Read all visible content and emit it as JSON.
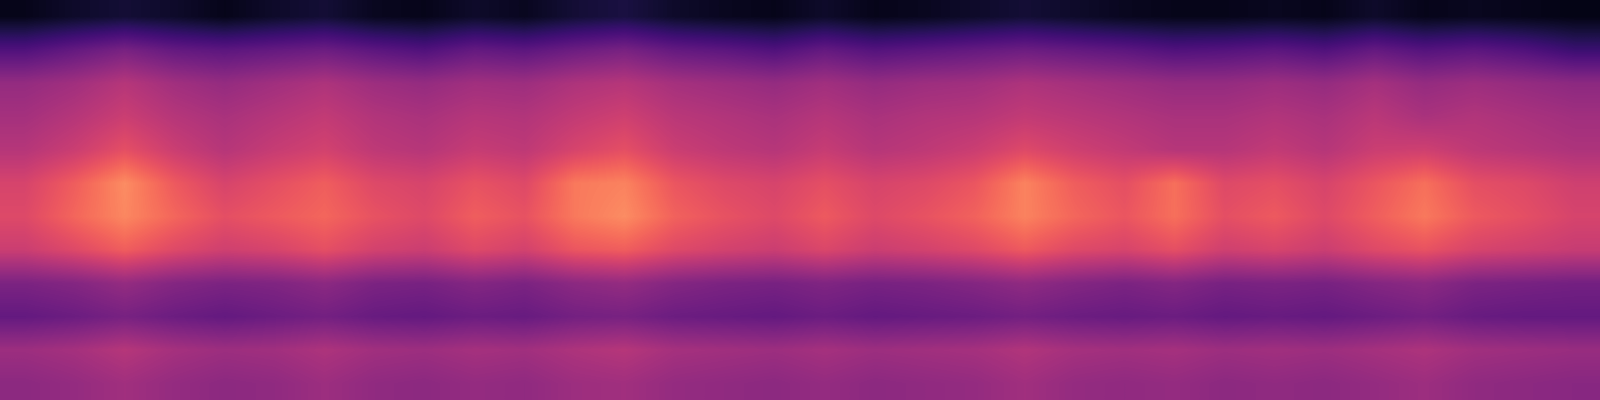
{
  "chart_data": {
    "type": "heatmap",
    "color": "magma",
    "tick_labels": false,
    "color_range": [
      0,
      1
    ],
    "cells": [
      [
        0.05,
        0.08,
        0.1,
        0.08,
        0.05,
        0.08,
        0.1,
        0.06,
        0.05,
        0.08,
        0.06,
        0.1,
        0.12,
        0.08,
        0.06,
        0.05,
        0.08,
        0.05,
        0.06,
        0.08,
        0.1,
        0.08,
        0.06,
        0.05,
        0.05,
        0.06,
        0.05,
        0.08,
        0.05,
        0.06,
        0.05,
        0.04
      ],
      [
        0.25,
        0.3,
        0.35,
        0.3,
        0.28,
        0.3,
        0.32,
        0.28,
        0.25,
        0.3,
        0.28,
        0.32,
        0.35,
        0.3,
        0.28,
        0.25,
        0.3,
        0.26,
        0.28,
        0.3,
        0.32,
        0.3,
        0.28,
        0.25,
        0.26,
        0.28,
        0.25,
        0.3,
        0.26,
        0.28,
        0.25,
        0.2
      ],
      [
        0.42,
        0.45,
        0.5,
        0.45,
        0.42,
        0.45,
        0.48,
        0.44,
        0.42,
        0.45,
        0.44,
        0.48,
        0.5,
        0.46,
        0.44,
        0.42,
        0.45,
        0.42,
        0.44,
        0.45,
        0.48,
        0.46,
        0.44,
        0.42,
        0.42,
        0.44,
        0.42,
        0.46,
        0.42,
        0.44,
        0.42,
        0.4
      ],
      [
        0.46,
        0.5,
        0.55,
        0.5,
        0.47,
        0.5,
        0.53,
        0.49,
        0.47,
        0.5,
        0.49,
        0.53,
        0.56,
        0.51,
        0.49,
        0.47,
        0.5,
        0.47,
        0.49,
        0.5,
        0.53,
        0.51,
        0.49,
        0.47,
        0.47,
        0.49,
        0.47,
        0.51,
        0.47,
        0.49,
        0.47,
        0.45
      ],
      [
        0.5,
        0.55,
        0.62,
        0.55,
        0.5,
        0.54,
        0.57,
        0.52,
        0.5,
        0.54,
        0.52,
        0.58,
        0.62,
        0.55,
        0.52,
        0.5,
        0.54,
        0.5,
        0.52,
        0.55,
        0.6,
        0.56,
        0.53,
        0.5,
        0.5,
        0.53,
        0.5,
        0.55,
        0.56,
        0.52,
        0.5,
        0.48
      ],
      [
        0.58,
        0.66,
        0.76,
        0.65,
        0.58,
        0.62,
        0.66,
        0.6,
        0.58,
        0.63,
        0.6,
        0.72,
        0.74,
        0.64,
        0.6,
        0.58,
        0.62,
        0.58,
        0.6,
        0.64,
        0.74,
        0.66,
        0.62,
        0.7,
        0.6,
        0.62,
        0.58,
        0.64,
        0.7,
        0.62,
        0.6,
        0.56
      ],
      [
        0.6,
        0.68,
        0.75,
        0.68,
        0.62,
        0.65,
        0.68,
        0.63,
        0.6,
        0.66,
        0.63,
        0.72,
        0.76,
        0.67,
        0.63,
        0.6,
        0.65,
        0.6,
        0.63,
        0.67,
        0.74,
        0.68,
        0.64,
        0.7,
        0.62,
        0.65,
        0.6,
        0.66,
        0.72,
        0.65,
        0.62,
        0.58
      ],
      [
        0.55,
        0.6,
        0.66,
        0.6,
        0.56,
        0.58,
        0.62,
        0.57,
        0.55,
        0.6,
        0.57,
        0.64,
        0.66,
        0.6,
        0.57,
        0.55,
        0.59,
        0.55,
        0.57,
        0.6,
        0.65,
        0.6,
        0.58,
        0.62,
        0.56,
        0.58,
        0.55,
        0.6,
        0.63,
        0.58,
        0.56,
        0.54
      ],
      [
        0.36,
        0.38,
        0.42,
        0.38,
        0.36,
        0.37,
        0.4,
        0.36,
        0.35,
        0.38,
        0.36,
        0.4,
        0.42,
        0.38,
        0.36,
        0.35,
        0.37,
        0.35,
        0.36,
        0.38,
        0.41,
        0.38,
        0.36,
        0.38,
        0.35,
        0.36,
        0.35,
        0.38,
        0.4,
        0.36,
        0.35,
        0.34
      ],
      [
        0.3,
        0.32,
        0.35,
        0.32,
        0.3,
        0.32,
        0.34,
        0.31,
        0.3,
        0.32,
        0.31,
        0.34,
        0.35,
        0.32,
        0.31,
        0.3,
        0.32,
        0.3,
        0.31,
        0.32,
        0.34,
        0.32,
        0.31,
        0.32,
        0.3,
        0.31,
        0.3,
        0.32,
        0.34,
        0.31,
        0.3,
        0.3
      ],
      [
        0.44,
        0.46,
        0.5,
        0.46,
        0.44,
        0.45,
        0.48,
        0.45,
        0.44,
        0.46,
        0.45,
        0.48,
        0.5,
        0.46,
        0.45,
        0.44,
        0.46,
        0.44,
        0.45,
        0.46,
        0.49,
        0.46,
        0.45,
        0.46,
        0.44,
        0.45,
        0.44,
        0.46,
        0.48,
        0.45,
        0.44,
        0.43
      ],
      [
        0.4,
        0.42,
        0.45,
        0.42,
        0.4,
        0.41,
        0.44,
        0.41,
        0.4,
        0.42,
        0.41,
        0.44,
        0.45,
        0.42,
        0.41,
        0.4,
        0.42,
        0.4,
        0.41,
        0.42,
        0.45,
        0.42,
        0.41,
        0.42,
        0.4,
        0.41,
        0.4,
        0.42,
        0.44,
        0.41,
        0.4,
        0.39
      ]
    ]
  }
}
